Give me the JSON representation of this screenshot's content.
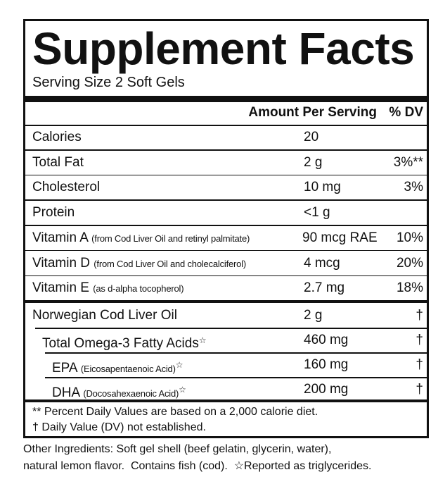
{
  "title": "Supplement Facts",
  "serving_size": "Serving Size 2 Soft Gels",
  "header": {
    "amount": "Amount Per Serving",
    "dv": "% DV"
  },
  "nutrients": [
    {
      "name": "Calories",
      "amount": "20"
    },
    {
      "name": "Total Fat",
      "amount": "2 g",
      "dv": "3%**"
    },
    {
      "name": "Cholesterol",
      "amount": "10 mg",
      "dv": "3%"
    },
    {
      "name": "Protein",
      "amount": "<1 g"
    },
    {
      "name": "Vitamin A",
      "note": "(from Cod Liver Oil and retinyl palmitate)",
      "amount": "90 mcg RAE",
      "dv": "10%"
    },
    {
      "name": "Vitamin D",
      "note": "(from Cod Liver Oil and cholecalciferol)",
      "amount": "4 mcg",
      "dv": "20%"
    },
    {
      "name": "Vitamin E",
      "note": "(as d-alpha tocopherol)",
      "amount": "2.7 mg",
      "dv": "18%"
    }
  ],
  "oil": [
    {
      "name": "Norwegian Cod Liver Oil",
      "amount": "2 g",
      "dv": "†"
    },
    {
      "name": "Total Omega-3 Fatty Acids",
      "mark": "☆",
      "amount": "460 mg",
      "dv": "†"
    },
    {
      "name": "EPA",
      "note": "(Eicosapentaenoic Acid)",
      "mark": "☆",
      "amount": "160 mg",
      "dv": "†"
    },
    {
      "name": "DHA",
      "note": "(Docosahexaenoic Acid)",
      "mark": "☆",
      "amount": "200 mg",
      "dv": "†"
    }
  ],
  "footnotes": [
    "** Percent Daily Values are based on a 2,000 calorie diet.",
    "† Daily Value (DV) not established."
  ],
  "other_ingredients": [
    "Other Ingredients: Soft gel shell (beef gelatin, glycerin, water),",
    "natural lemon flavor.  Contains fish (cod).  ☆Reported as triglycerides."
  ]
}
